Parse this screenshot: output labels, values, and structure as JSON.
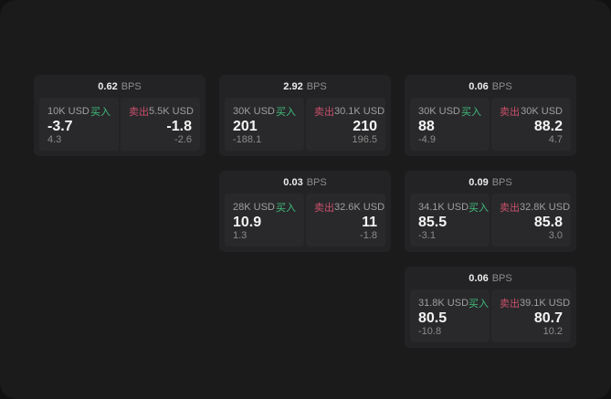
{
  "page": {
    "background": "#121213",
    "surface": "#1b1b1c"
  },
  "labels": {
    "buy": "买入",
    "sell": "卖出",
    "unit": "BPS"
  },
  "colors": {
    "buy_green": "#40bd7c",
    "sell_red": "#c9506a",
    "card_bg": "#232325",
    "tile_bg": "#29292b",
    "text_primary": "#f4f4f4",
    "text_muted": "#9f9f9f"
  },
  "cards": [
    {
      "bps": "0.62",
      "buy": {
        "size": "10K USD",
        "price": "-3.7",
        "delta": "4.3"
      },
      "sell": {
        "size": "5.5K USD",
        "price": "-1.8",
        "delta": "-2.6"
      }
    },
    {
      "bps": "2.92",
      "buy": {
        "size": "30K USD",
        "price": "201",
        "delta": "-188.1"
      },
      "sell": {
        "size": "30.1K USD",
        "price": "210",
        "delta": "196.5"
      }
    },
    {
      "bps": "0.06",
      "buy": {
        "size": "30K USD",
        "price": "88",
        "delta": "-4.9"
      },
      "sell": {
        "size": "30K USD",
        "price": "88.2",
        "delta": "4.7"
      }
    },
    {
      "bps": "0.03",
      "buy": {
        "size": "28K USD",
        "price": "10.9",
        "delta": "1.3"
      },
      "sell": {
        "size": "32.6K USD",
        "price": "11",
        "delta": "-1.8"
      }
    },
    {
      "bps": "0.09",
      "buy": {
        "size": "34.1K USD",
        "price": "85.5",
        "delta": "-3.1"
      },
      "sell": {
        "size": "32.8K USD",
        "price": "85.8",
        "delta": "3.0"
      }
    },
    {
      "bps": "0.06",
      "buy": {
        "size": "31.8K USD",
        "price": "80.5",
        "delta": "-10.8"
      },
      "sell": {
        "size": "39.1K USD",
        "price": "80.7",
        "delta": "10.2"
      }
    }
  ]
}
